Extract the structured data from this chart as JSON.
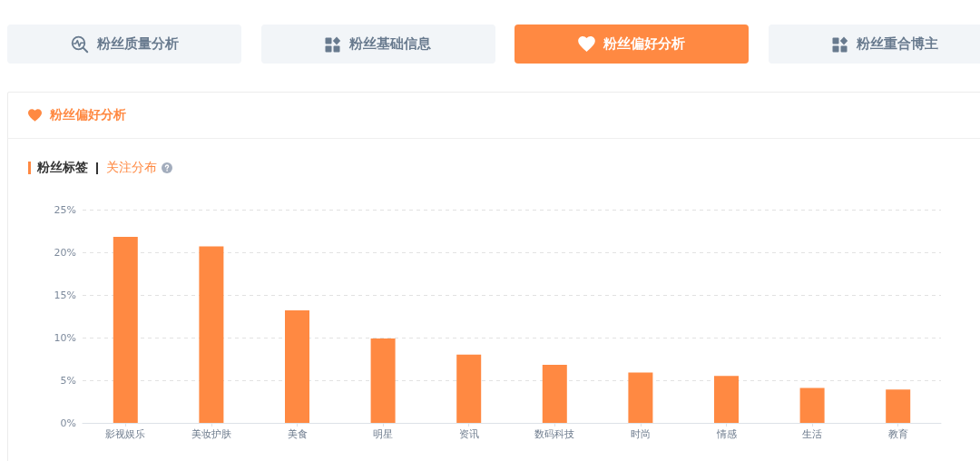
{
  "chart_data": {
    "type": "bar",
    "title": "粉丝偏好分析",
    "subtitle": "粉丝标签",
    "annotations": [
      "粉丝质量分析",
      "粉丝基础信息",
      "粉丝偏好分析",
      "粉丝重合博主",
      "关注分布"
    ],
    "categories": [
      "影视娱乐",
      "美妆护肤",
      "美食",
      "明星",
      "资讯",
      "数码科技",
      "时尚",
      "情感",
      "生活",
      "教育"
    ],
    "values": [
      21.8,
      20.7,
      13.2,
      9.9,
      8.0,
      6.8,
      5.9,
      5.5,
      4.1,
      3.9
    ],
    "color": "#ff8942",
    "ylim": [
      0,
      25
    ],
    "yticks": [
      {
        "value": 0,
        "label": "0%"
      },
      {
        "value": 5,
        "label": "5%"
      },
      {
        "value": 10,
        "label": "10%"
      },
      {
        "value": 15,
        "label": "15%"
      },
      {
        "value": 20,
        "label": "20%"
      },
      {
        "value": 25,
        "label": "25%"
      }
    ],
    "grid": "y"
  }
}
